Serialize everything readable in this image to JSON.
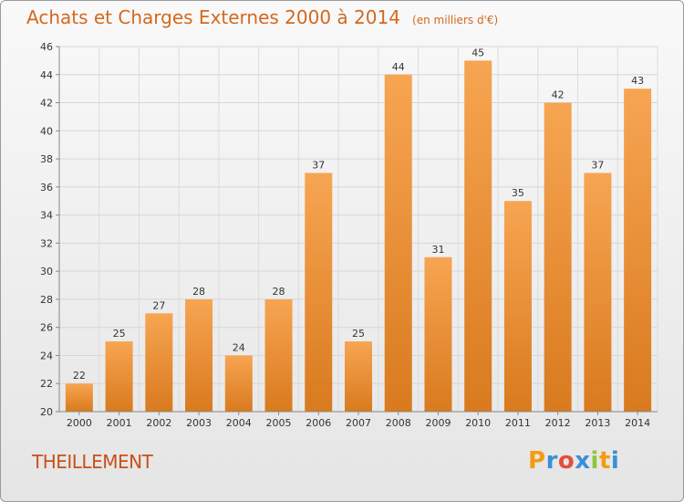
{
  "chart_data": {
    "type": "bar",
    "title": "Achats et Charges Externes 2000 à 2014",
    "subtitle": "(en milliers d'€)",
    "categories": [
      "2000",
      "2001",
      "2002",
      "2003",
      "2004",
      "2005",
      "2006",
      "2007",
      "2008",
      "2009",
      "2010",
      "2011",
      "2012",
      "2013",
      "2014"
    ],
    "values": [
      22,
      25,
      27,
      28,
      24,
      28,
      37,
      25,
      44,
      31,
      45,
      35,
      42,
      37,
      43
    ],
    "ylim": [
      20,
      46
    ],
    "yticks": [
      20,
      22,
      24,
      26,
      28,
      30,
      32,
      34,
      36,
      38,
      40,
      42,
      44,
      46
    ],
    "grid": true,
    "bar_color": "#f0923a",
    "title_color": "#d2691e"
  },
  "footer": {
    "commune": "THEILLEMENT",
    "logo_letters": [
      "P",
      "r",
      "o",
      "x",
      "i",
      "t",
      "i"
    ],
    "logo_colors": [
      "#f39c12",
      "#3a8fd9",
      "#e74c3c",
      "#3a8fd9",
      "#8dc63f",
      "#f39c12",
      "#3a8fd9"
    ]
  }
}
